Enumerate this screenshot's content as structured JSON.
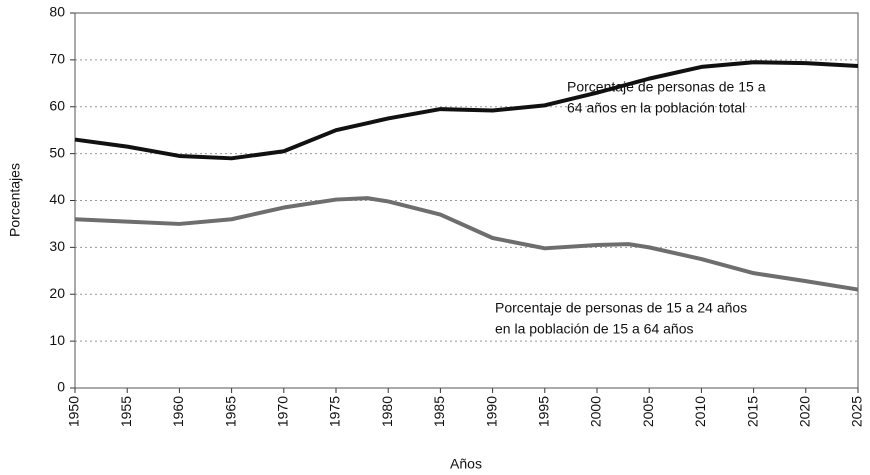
{
  "chart_data": {
    "type": "line",
    "x_label": "Años",
    "y_label": "Porcentajes",
    "x": [
      1950,
      1955,
      1960,
      1965,
      1970,
      1975,
      1978,
      1980,
      1985,
      1990,
      1995,
      2000,
      2003,
      2005,
      2010,
      2015,
      2020,
      2025
    ],
    "series": [
      {
        "name": "Porcentaje de personas de 15 a 64 años en la población total",
        "color": "#111111",
        "values": [
          53,
          51.5,
          49.5,
          49,
          50.5,
          55,
          56.5,
          57.5,
          59.5,
          59.2,
          60.3,
          63,
          64.8,
          66,
          68.5,
          69.5,
          69.3,
          68.7
        ]
      },
      {
        "name": "Porcentaje de personas de 15 a 24 años en la población de 15 a 64 años",
        "color": "#6e6e6e",
        "values": [
          36,
          35.5,
          35,
          36,
          38.5,
          40.2,
          40.5,
          39.8,
          37,
          32,
          29.8,
          30.5,
          30.7,
          30,
          27.5,
          24.5,
          22.8,
          21
        ]
      }
    ],
    "annotations": [
      [
        "Porcentaje de personas de 15 a",
        "64 años en la población total"
      ],
      [
        "Porcentaje de personas de 15 a 24 años",
        "en la población de 15 a 64 años"
      ]
    ],
    "xlim": [
      1950,
      2025
    ],
    "xticks": [
      1950,
      1955,
      1960,
      1965,
      1970,
      1975,
      1980,
      1985,
      1990,
      1995,
      2000,
      2005,
      2010,
      2015,
      2020,
      2025
    ],
    "ylim": [
      0,
      80
    ],
    "yticks": [
      0,
      10,
      20,
      30,
      40,
      50,
      60,
      70,
      80
    ],
    "grid": true
  }
}
